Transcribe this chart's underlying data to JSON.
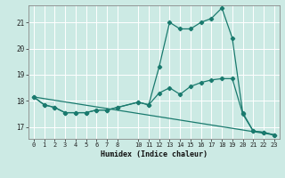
{
  "xlabel": "Humidex (Indice chaleur)",
  "bg_color": "#cceae4",
  "line_color": "#1a7a6e",
  "grid_color": "#ffffff",
  "xlim": [
    -0.5,
    23.5
  ],
  "ylim": [
    16.55,
    21.65
  ],
  "yticks": [
    17,
    18,
    19,
    20,
    21
  ],
  "xticks": [
    0,
    1,
    2,
    3,
    4,
    5,
    6,
    7,
    8,
    10,
    11,
    12,
    13,
    14,
    15,
    16,
    17,
    18,
    19,
    20,
    21,
    22,
    23
  ],
  "series1_x": [
    0,
    1,
    2,
    3,
    4,
    5,
    6,
    7,
    8,
    10,
    11,
    12,
    13,
    14,
    15,
    16,
    17,
    18,
    19,
    20,
    21,
    22,
    23
  ],
  "series1_y": [
    18.15,
    17.85,
    17.75,
    17.55,
    17.55,
    17.55,
    17.65,
    17.65,
    17.75,
    17.95,
    17.85,
    19.3,
    21.0,
    20.75,
    20.75,
    21.0,
    21.15,
    21.55,
    20.4,
    17.55,
    16.85,
    16.8,
    16.7
  ],
  "series2_x": [
    0,
    1,
    2,
    3,
    4,
    5,
    6,
    7,
    8,
    10,
    11,
    12,
    13,
    14,
    15,
    16,
    17,
    18,
    19,
    20,
    21,
    22,
    23
  ],
  "series2_y": [
    18.15,
    17.85,
    17.75,
    17.55,
    17.55,
    17.55,
    17.65,
    17.65,
    17.75,
    17.95,
    17.85,
    18.3,
    18.5,
    18.25,
    18.55,
    18.7,
    18.8,
    18.85,
    18.85,
    17.5,
    16.85,
    16.8,
    16.7
  ],
  "series3_x": [
    0,
    23
  ],
  "series3_y": [
    18.15,
    16.7
  ]
}
